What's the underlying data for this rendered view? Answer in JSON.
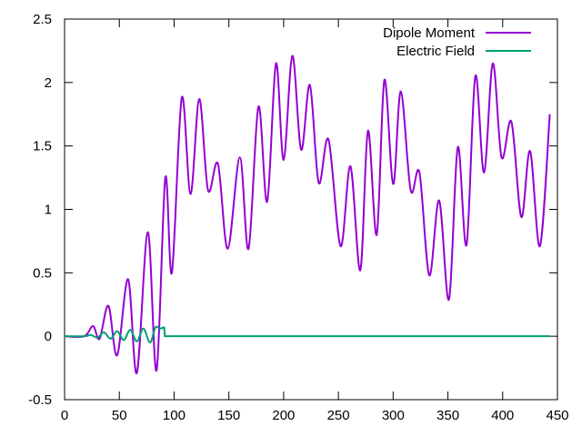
{
  "chart_data": {
    "type": "line",
    "title": "",
    "xlabel": "",
    "ylabel": "",
    "xlim": [
      0,
      450
    ],
    "ylim": [
      -0.5,
      2.5
    ],
    "xticks": [
      0,
      50,
      100,
      150,
      200,
      250,
      300,
      350,
      400,
      450
    ],
    "yticks": [
      -0.5,
      0,
      0.5,
      1,
      1.5,
      2,
      2.5
    ],
    "xtick_labels": [
      "0",
      "50",
      "100",
      "150",
      "200",
      "250",
      "300",
      "350",
      "400",
      "450"
    ],
    "ytick_labels": [
      "-0.5",
      "0",
      "0.5",
      "1",
      "1.5",
      "2",
      "2.5"
    ],
    "grid": false,
    "legend_position": "top-right",
    "series": [
      {
        "name": "Dipole Moment",
        "color": "#9400d3",
        "x": [
          0,
          18,
          26,
          32,
          40,
          48,
          58,
          66,
          76,
          84,
          92,
          98,
          107,
          115,
          123,
          131,
          140,
          149,
          160,
          168,
          177,
          185,
          193,
          200,
          208,
          216,
          224,
          232,
          241,
          252,
          261,
          270,
          277,
          285,
          292,
          300,
          307,
          316,
          324,
          333,
          342,
          351,
          359,
          367,
          375,
          383,
          391,
          399,
          408,
          417,
          425,
          434,
          443
        ],
        "y": [
          0,
          0,
          0.08,
          -0.02,
          0.24,
          -0.15,
          0.45,
          -0.29,
          0.82,
          -0.27,
          1.25,
          0.5,
          1.88,
          1.12,
          1.87,
          1.15,
          1.36,
          0.69,
          1.41,
          0.69,
          1.81,
          1.06,
          2.15,
          1.39,
          2.21,
          1.47,
          1.98,
          1.21,
          1.55,
          0.71,
          1.34,
          0.52,
          1.62,
          0.8,
          2.02,
          1.2,
          1.93,
          1.15,
          1.29,
          0.48,
          1.07,
          0.29,
          1.49,
          0.72,
          2.05,
          1.29,
          2.15,
          1.41,
          1.69,
          0.94,
          1.46,
          0.71,
          1.75
        ]
      },
      {
        "name": "Electric Field",
        "color": "#009e73",
        "x": [
          0,
          18,
          24,
          30,
          36,
          42,
          48,
          54,
          60,
          66,
          72,
          78,
          83,
          87,
          91,
          91.5,
          443
        ],
        "y": [
          0,
          0,
          0.01,
          -0.01,
          0.03,
          -0.02,
          0.04,
          -0.03,
          0.05,
          -0.04,
          0.06,
          -0.05,
          0.07,
          0.06,
          0.07,
          0,
          0
        ]
      }
    ]
  }
}
